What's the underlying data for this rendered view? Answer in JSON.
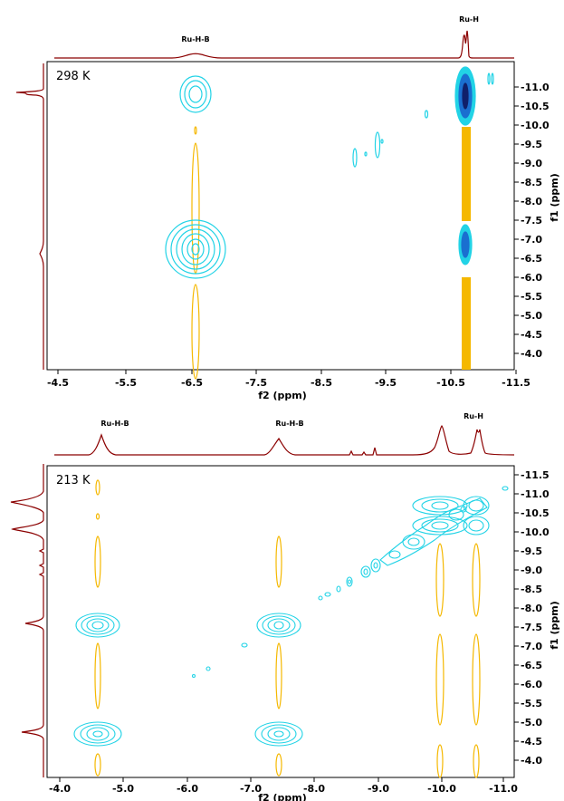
{
  "chart_data": [
    {
      "type": "contour",
      "temperature_label": "298 K",
      "xlabel": "f2 (ppm)",
      "ylabel": "f1 (ppm)",
      "x_ticks": [
        "-4.5",
        "-5.5",
        "-6.5",
        "-7.5",
        "-8.5",
        "-9.5",
        "-10.5",
        "-11.5"
      ],
      "y_ticks": [
        "-11.0",
        "-10.5",
        "-10.0",
        "-9.5",
        "-9.0",
        "-8.5",
        "-8.0",
        "-7.5",
        "-7.0",
        "-6.5",
        "-6.0",
        "-5.5",
        "-5.0",
        "-4.5",
        "-4.0"
      ],
      "xlim": [
        -4.4,
        -11.6
      ],
      "ylim": [
        -3.7,
        -11.5
      ],
      "peak_labels": [
        {
          "text": "Ru-H-B",
          "x": -6.6
        },
        {
          "text": "Ru-H",
          "x": -10.75
        }
      ],
      "cross_peaks": [
        {
          "x": -6.6,
          "y": -10.85,
          "color": "#22d3e6"
        },
        {
          "x": -6.6,
          "y": -6.75,
          "color": "#22d3e6"
        },
        {
          "x": -10.75,
          "y": -10.8,
          "color": "#22d3e6"
        },
        {
          "x": -10.75,
          "y": -6.75,
          "color": "#22d3e6"
        },
        {
          "x": -9.4,
          "y": -9.4,
          "color": "#22d3e6"
        },
        {
          "x": -10.15,
          "y": -10.25,
          "color": "#22d3e6"
        },
        {
          "x": -9.0,
          "y": -9.2,
          "color": "#22d3e6"
        },
        {
          "x": -11.05,
          "y": -11.2,
          "color": "#22d3e6"
        }
      ],
      "t1_noise_color": "#f5b800"
    },
    {
      "type": "contour",
      "temperature_label": "213 K",
      "xlabel": "f2 (ppm)",
      "ylabel": "f1 (ppm)",
      "x_ticks": [
        "-4.0",
        "-5.0",
        "-6.0",
        "-7.0",
        "-8.0",
        "-9.0",
        "-10.0",
        "-11.0"
      ],
      "y_ticks": [
        "-11.5",
        "-11.0",
        "-10.5",
        "-10.0",
        "-9.5",
        "-9.0",
        "-8.5",
        "-8.0",
        "-7.5",
        "-7.0",
        "-6.5",
        "-6.0",
        "-5.5",
        "-5.0",
        "-4.5",
        "-4.0"
      ],
      "xlim": [
        -3.9,
        -11.3
      ],
      "ylim": [
        -3.8,
        -11.7
      ],
      "peak_labels": [
        {
          "text": "Ru-H-B",
          "x": -4.65
        },
        {
          "text": "Ru-H-B",
          "x": -7.5
        },
        {
          "text": "Ru-H",
          "x": -10.55
        }
      ],
      "cross_peaks": [
        {
          "x": -4.65,
          "y": -7.55,
          "color": "#22d3e6"
        },
        {
          "x": -4.65,
          "y": -4.7,
          "color": "#22d3e6"
        },
        {
          "x": -7.5,
          "y": -7.55,
          "color": "#22d3e6"
        },
        {
          "x": -7.5,
          "y": -4.7,
          "color": "#22d3e6"
        },
        {
          "x": -10.0,
          "y": -10.65,
          "color": "#22d3e6"
        },
        {
          "x": -10.0,
          "y": -10.1,
          "color": "#22d3e6"
        },
        {
          "x": -10.65,
          "y": -10.65,
          "color": "#22d3e6"
        },
        {
          "x": -10.65,
          "y": -10.1,
          "color": "#22d3e6"
        },
        {
          "x": -9.7,
          "y": -9.75,
          "color": "#22d3e6"
        },
        {
          "x": -9.0,
          "y": -9.05,
          "color": "#22d3e6"
        },
        {
          "x": -8.65,
          "y": -8.75,
          "color": "#22d3e6"
        }
      ],
      "t1_noise_color": "#f5b800"
    }
  ]
}
